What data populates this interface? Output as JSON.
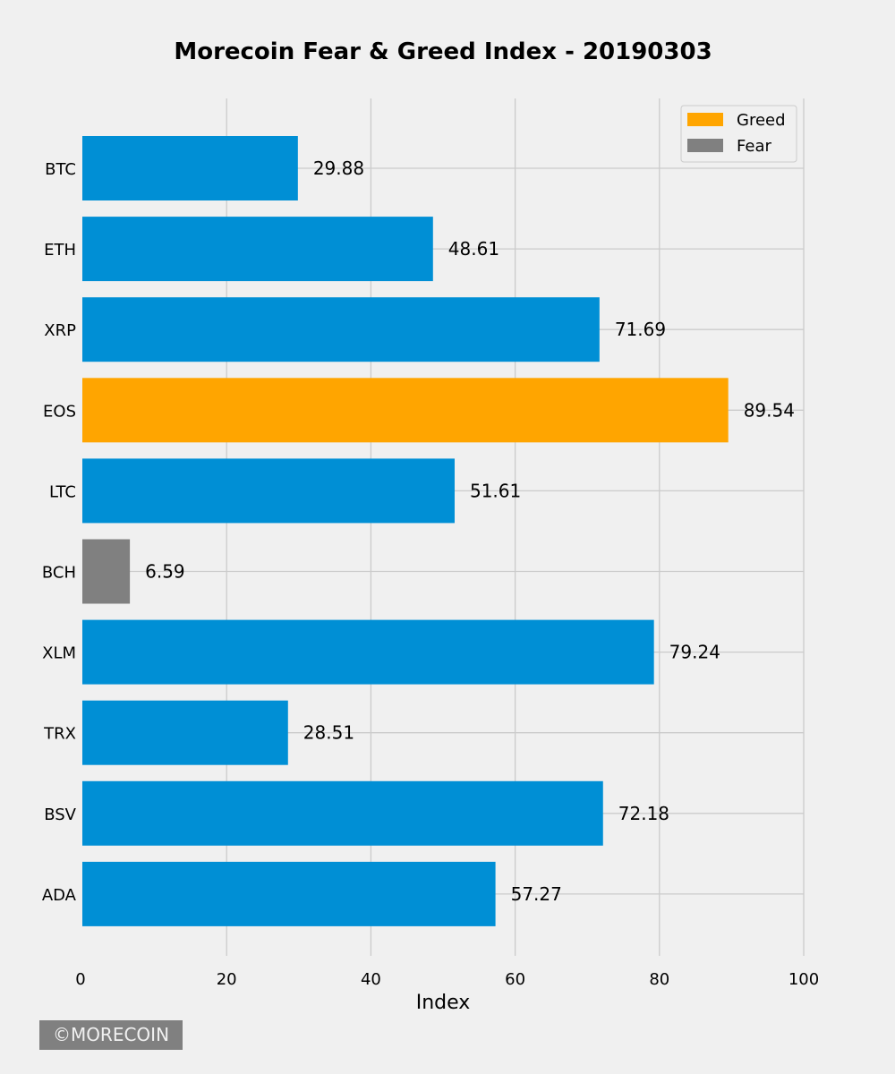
{
  "chart_data": {
    "type": "bar",
    "orientation": "horizontal",
    "title": "Morecoin Fear & Greed Index - 20190303",
    "xlabel": "Index",
    "ylabel": "",
    "xlim": [
      0,
      100
    ],
    "xticks": [
      0,
      20,
      40,
      60,
      80,
      100
    ],
    "grid": true,
    "categories": [
      "BTC",
      "ETH",
      "XRP",
      "EOS",
      "LTC",
      "BCH",
      "XLM",
      "TRX",
      "BSV",
      "ADA"
    ],
    "values": [
      29.88,
      48.61,
      71.69,
      89.54,
      51.61,
      6.59,
      79.24,
      28.51,
      72.18,
      57.27
    ],
    "value_labels": [
      "29.88",
      "48.61",
      "71.69",
      "89.54",
      "51.61",
      "6.59",
      "79.24",
      "28.51",
      "72.18",
      "57.27"
    ],
    "bar_status": [
      "neutral",
      "neutral",
      "neutral",
      "greed",
      "neutral",
      "fear",
      "neutral",
      "neutral",
      "neutral",
      "neutral"
    ],
    "legend": {
      "placement": "top-right",
      "entries": [
        {
          "label": "Greed",
          "key": "greed"
        },
        {
          "label": "Fear",
          "key": "fear"
        }
      ]
    }
  },
  "colors": {
    "neutral": "#008fd5",
    "greed": "#ffa500",
    "fear": "#808080",
    "grid": "#cbcbcb",
    "background": "#f0f0f0"
  },
  "watermark": "©MORECOIN"
}
